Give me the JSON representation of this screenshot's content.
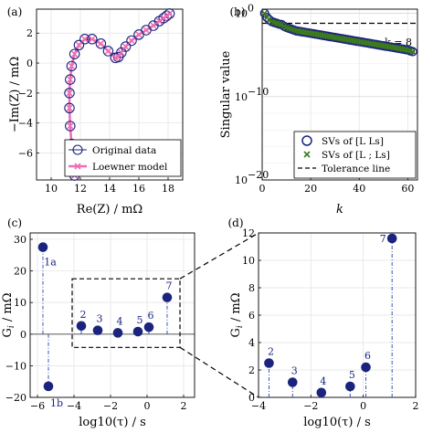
{
  "chart_data": [
    {
      "panel": "(a)",
      "type": "line",
      "xlabel": "Re(Z) / mΩ",
      "ylabel": "−Im(Z) / mΩ",
      "xlim": [
        9,
        19
      ],
      "ylim": [
        -7.8,
        3.6
      ],
      "xticks": [
        10,
        12,
        14,
        16,
        18
      ],
      "yticks": [
        -6,
        -4,
        -2,
        0,
        2
      ],
      "grid": true,
      "legend_position": "bottom-right",
      "series": [
        {
          "name": "Original data",
          "style": "circles",
          "color": "#1a237e",
          "x": [
            11.6,
            11.5,
            11.4,
            11.3,
            11.25,
            11.25,
            11.3,
            11.4,
            11.6,
            11.9,
            12.3,
            12.8,
            13.4,
            13.9,
            14.4,
            14.6,
            14.8,
            15.1,
            15.5,
            16.0,
            16.5,
            17.0,
            17.4,
            17.7,
            17.9,
            18.1
          ],
          "y": [
            -7.5,
            -6.6,
            -5.4,
            -4.2,
            -3.0,
            -2.0,
            -1.1,
            -0.2,
            0.6,
            1.2,
            1.6,
            1.6,
            1.3,
            0.8,
            0.35,
            0.4,
            0.7,
            1.1,
            1.5,
            1.9,
            2.2,
            2.5,
            2.8,
            3.0,
            3.15,
            3.3
          ]
        },
        {
          "name": "Loewner model",
          "style": "line-x",
          "color": "#f06eb4",
          "x": [
            11.6,
            11.5,
            11.4,
            11.3,
            11.25,
            11.25,
            11.3,
            11.4,
            11.6,
            11.9,
            12.3,
            12.8,
            13.4,
            13.9,
            14.4,
            14.6,
            14.8,
            15.1,
            15.5,
            16.0,
            16.5,
            17.0,
            17.4,
            17.7,
            17.9,
            18.1
          ],
          "y": [
            -7.5,
            -6.6,
            -5.4,
            -4.2,
            -3.0,
            -2.0,
            -1.1,
            -0.2,
            0.6,
            1.2,
            1.6,
            1.6,
            1.3,
            0.8,
            0.35,
            0.4,
            0.7,
            1.1,
            1.5,
            1.9,
            2.2,
            2.5,
            2.8,
            3.0,
            3.15,
            3.3
          ]
        }
      ]
    },
    {
      "panel": "(b)",
      "type": "scatter",
      "xlabel": "k",
      "ylabel": "Singular value",
      "xlim": [
        0,
        64
      ],
      "yscale": "log",
      "ylim_exp": [
        -20,
        0.5
      ],
      "xticks": [
        0,
        20,
        40,
        60
      ],
      "ytick_labels": [
        "10",
        "10",
        "10"
      ],
      "ytick_exponents": [
        "0",
        "−10",
        "−20"
      ],
      "ytick_values_exp": [
        0,
        -10,
        -20
      ],
      "grid": true,
      "legend_position": "bottom-right",
      "annotation": "k = 8",
      "tolerance_exp": -1.2,
      "series": [
        {
          "name": "SVs of [L Ls]",
          "style": "circles",
          "color": "#1a237e",
          "k_start": 1,
          "k_end": 62,
          "log10_values": [
            0.0,
            -0.5,
            -0.8,
            -1.0,
            -1.1,
            -1.2,
            -1.3,
            -1.35,
            -1.55,
            -1.7,
            -1.8,
            -1.9,
            -2.0,
            -2.1,
            -2.15,
            -2.2,
            -2.25,
            -2.3,
            -2.35,
            -2.4,
            -2.45,
            -2.5,
            -2.55,
            -2.6,
            -2.65,
            -2.7,
            -2.75,
            -2.8,
            -2.85,
            -2.9,
            -2.95,
            -3.0,
            -3.05,
            -3.1,
            -3.15,
            -3.2,
            -3.25,
            -3.3,
            -3.35,
            -3.4,
            -3.45,
            -3.5,
            -3.55,
            -3.6,
            -3.65,
            -3.7,
            -3.75,
            -3.8,
            -3.85,
            -3.9,
            -3.95,
            -4.0,
            -4.05,
            -4.1,
            -4.15,
            -4.2,
            -4.25,
            -4.3,
            -4.35,
            -4.4,
            -4.5,
            -4.6
          ]
        },
        {
          "name": "SVs of [L ; Ls]",
          "style": "x",
          "color": "#3d7a1c",
          "k_start": 1,
          "k_end": 62,
          "log10_values": [
            0.0,
            -0.5,
            -0.8,
            -1.0,
            -1.1,
            -1.2,
            -1.3,
            -1.35,
            -1.55,
            -1.7,
            -1.8,
            -1.9,
            -2.0,
            -2.1,
            -2.15,
            -2.2,
            -2.25,
            -2.3,
            -2.35,
            -2.4,
            -2.45,
            -2.5,
            -2.55,
            -2.6,
            -2.65,
            -2.7,
            -2.75,
            -2.8,
            -2.85,
            -2.9,
            -2.95,
            -3.0,
            -3.05,
            -3.1,
            -3.15,
            -3.2,
            -3.25,
            -3.3,
            -3.35,
            -3.4,
            -3.45,
            -3.5,
            -3.55,
            -3.6,
            -3.65,
            -3.7,
            -3.75,
            -3.8,
            -3.85,
            -3.9,
            -3.95,
            -4.0,
            -4.05,
            -4.1,
            -4.15,
            -4.2,
            -4.25,
            -4.3,
            -4.35,
            -4.4,
            -4.5,
            -4.6
          ]
        },
        {
          "name": "Tolerance line",
          "style": "dashed",
          "color": "#000000"
        }
      ]
    },
    {
      "panel": "(c)",
      "type": "stem",
      "xlabel": "log10(τ) / s",
      "ylabel": "G_i / mΩ",
      "xlim": [
        -6.4,
        2.6
      ],
      "ylim": [
        -20,
        32
      ],
      "xticks": [
        -6,
        -4,
        -2,
        0,
        2
      ],
      "yticks": [
        -20,
        -10,
        0,
        10,
        20,
        30
      ],
      "grid": true,
      "zoom_box": {
        "x": [
          -4.1,
          1.8
        ],
        "y": [
          -4.2,
          17.5
        ]
      },
      "points": [
        {
          "label": "1a",
          "x": -5.7,
          "y": 27.5
        },
        {
          "label": "1b",
          "x": -5.4,
          "y": -16.5
        },
        {
          "label": "2",
          "x": -3.6,
          "y": 2.6
        },
        {
          "label": "3",
          "x": -2.7,
          "y": 1.2
        },
        {
          "label": "4",
          "x": -1.6,
          "y": 0.4
        },
        {
          "label": "5",
          "x": -0.5,
          "y": 0.8
        },
        {
          "label": "6",
          "x": 0.1,
          "y": 2.2
        },
        {
          "label": "7",
          "x": 1.1,
          "y": 11.6
        }
      ]
    },
    {
      "panel": "(d)",
      "type": "stem",
      "xlabel": "log10(τ) / s",
      "ylabel": "G_i / mΩ",
      "xlim": [
        -4,
        2
      ],
      "ylim": [
        0,
        12
      ],
      "xticks": [
        -4,
        -2,
        0,
        2
      ],
      "yticks": [
        0,
        2,
        4,
        6,
        8,
        10,
        12
      ],
      "grid": true,
      "points": [
        {
          "label": "2",
          "x": -3.6,
          "y": 2.5
        },
        {
          "label": "3",
          "x": -2.7,
          "y": 1.1
        },
        {
          "label": "4",
          "x": -1.6,
          "y": 0.35
        },
        {
          "label": "5",
          "x": -0.5,
          "y": 0.8
        },
        {
          "label": "6",
          "x": 0.1,
          "y": 2.2
        },
        {
          "label": "7",
          "x": 1.1,
          "y": 11.6
        }
      ]
    }
  ]
}
